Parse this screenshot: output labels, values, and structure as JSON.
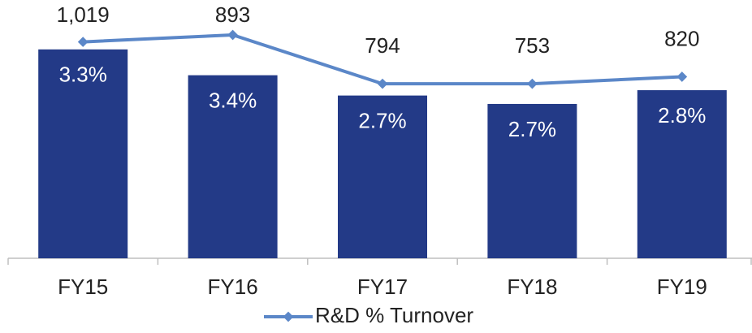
{
  "chart_data": {
    "type": "bar",
    "categories": [
      "FY15",
      "FY16",
      "FY17",
      "FY18",
      "FY19"
    ],
    "series": [
      {
        "type": "bar",
        "color": "#233a87",
        "values": [
          1019,
          893,
          794,
          753,
          820
        ],
        "value_labels": [
          "1,019",
          "893",
          "794",
          "753",
          "820"
        ]
      },
      {
        "type": "line",
        "name": "R&D % Turnover",
        "color": "#5b87c8",
        "axis": "y2",
        "values": [
          3.3,
          3.4,
          2.7,
          2.7,
          2.8
        ],
        "value_labels": [
          "3.3%",
          "3.4%",
          "2.7%",
          "2.7%",
          "2.8%"
        ]
      }
    ],
    "ylim": [
      0,
      1260
    ],
    "y2lim": [
      0.2,
      3.9
    ],
    "legend": "bottom"
  }
}
